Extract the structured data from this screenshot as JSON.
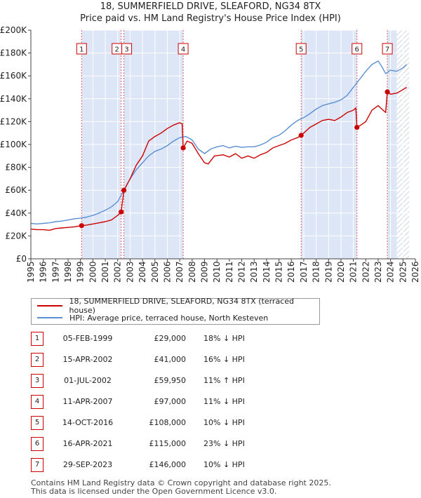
{
  "title_line1": "18, SUMMERFIELD DRIVE, SLEAFORD, NG34 8TX",
  "title_line2": "Price paid vs. HM Land Registry's House Price Index (HPI)",
  "legend": {
    "property": "18, SUMMERFIELD DRIVE, SLEAFORD, NG34 8TX (terraced house)",
    "hpi": "HPI: Average price, terraced house, North Kesteven"
  },
  "colors": {
    "property": "#cc0000",
    "hpi": "#5b8fd4",
    "shade": "#dde6f6",
    "marker": "#cc0000"
  },
  "transactions": [
    {
      "num": "1",
      "date": "05-FEB-1999",
      "price": "£29,000",
      "hpi": "18% ↓ HPI"
    },
    {
      "num": "2",
      "date": "15-APR-2002",
      "price": "£41,000",
      "hpi": "16% ↓ HPI"
    },
    {
      "num": "3",
      "date": "01-JUL-2002",
      "price": "£59,950",
      "hpi": "11% ↑ HPI"
    },
    {
      "num": "4",
      "date": "11-APR-2007",
      "price": "£97,000",
      "hpi": "11% ↓ HPI"
    },
    {
      "num": "5",
      "date": "14-OCT-2016",
      "price": "£108,000",
      "hpi": "10% ↓ HPI"
    },
    {
      "num": "6",
      "date": "16-APR-2021",
      "price": "£115,000",
      "hpi": "23% ↓ HPI"
    },
    {
      "num": "7",
      "date": "29-SEP-2023",
      "price": "£146,000",
      "hpi": "10% ↓ HPI"
    }
  ],
  "footer_line1": "Contains HM Land Registry data © Crown copyright and database right 2025.",
  "footer_line2": "This data is licensed under the Open Government Licence v3.0.",
  "chart_data": {
    "type": "line",
    "title": "18, SUMMERFIELD DRIVE, SLEAFORD, NG34 8TX — Price paid vs. HM Land Registry's House Price Index (HPI)",
    "xlabel": "",
    "ylabel": "",
    "xlim": [
      1995,
      2026
    ],
    "ylim": [
      0,
      200000
    ],
    "x_ticks": [
      1995,
      1996,
      1997,
      1998,
      1999,
      2000,
      2001,
      2002,
      2003,
      2004,
      2005,
      2006,
      2007,
      2008,
      2009,
      2010,
      2011,
      2012,
      2013,
      2014,
      2015,
      2016,
      2017,
      2018,
      2019,
      2020,
      2021,
      2022,
      2023,
      2024,
      2025,
      2026
    ],
    "y_ticks": [
      0,
      20000,
      40000,
      60000,
      80000,
      100000,
      120000,
      140000,
      160000,
      180000,
      200000
    ],
    "y_tick_labels": [
      "£0",
      "£20K",
      "£40K",
      "£60K",
      "£80K",
      "£100K",
      "£120K",
      "£140K",
      "£160K",
      "£180K",
      "£200K"
    ],
    "shaded_ranges": [
      [
        1999.1,
        2002.25
      ],
      [
        2002.5,
        2007.28
      ],
      [
        2016.79,
        2021.29
      ],
      [
        2023.75,
        2024.5
      ]
    ],
    "hatched_range": [
      2024.5,
      2025.5
    ],
    "series": [
      {
        "name": "18, SUMMERFIELD DRIVE, SLEAFORD, NG34 8TX (terraced house)",
        "x": [
          1995,
          1995.5,
          1996,
          1996.5,
          1997,
          1997.5,
          1998,
          1998.5,
          1999.09,
          1999.5,
          2000,
          2000.5,
          2001,
          2001.5,
          2002,
          2002.28,
          2002.5,
          2003,
          2003.5,
          2004,
          2004.5,
          2005,
          2005.5,
          2006,
          2006.5,
          2007,
          2007.2,
          2007.28,
          2007.6,
          2008,
          2008.5,
          2009,
          2009.3,
          2009.8,
          2010.5,
          2011,
          2011.5,
          2012,
          2012.5,
          2013,
          2013.5,
          2014,
          2014.5,
          2015,
          2015.5,
          2016,
          2016.5,
          2016.79,
          2017,
          2017.5,
          2018,
          2018.5,
          2019,
          2019.5,
          2020,
          2020.5,
          2021,
          2021.2,
          2021.29,
          2021.6,
          2022,
          2022.5,
          2023,
          2023.4,
          2023.6,
          2023.74,
          2024,
          2024.5,
          2025,
          2025.3
        ],
        "y": [
          26000,
          25500,
          25500,
          25000,
          26500,
          27000,
          27500,
          28000,
          29000,
          29500,
          30500,
          31500,
          32500,
          34000,
          38000,
          41000,
          59950,
          70000,
          82000,
          90000,
          103000,
          107000,
          110000,
          114000,
          117000,
          119000,
          118000,
          97000,
          103000,
          101000,
          92000,
          84000,
          83000,
          90000,
          91000,
          89000,
          92000,
          88000,
          90000,
          88000,
          91000,
          93000,
          97000,
          99000,
          101000,
          104000,
          106000,
          108000,
          110000,
          115000,
          118000,
          121000,
          122000,
          121000,
          124000,
          128000,
          130000,
          132000,
          115000,
          117000,
          120000,
          130000,
          134000,
          130000,
          128000,
          146000,
          144000,
          145000,
          148000,
          150000
        ]
      },
      {
        "name": "HPI: Average price, terraced house, North Kesteven",
        "x": [
          1995,
          1995.5,
          1996,
          1996.5,
          1997,
          1997.5,
          1998,
          1998.5,
          1999,
          1999.5,
          2000,
          2000.5,
          2001,
          2001.5,
          2002,
          2002.5,
          2003,
          2003.5,
          2004,
          2004.5,
          2005,
          2005.5,
          2006,
          2006.5,
          2007,
          2007.5,
          2008,
          2008.5,
          2009,
          2009.5,
          2010,
          2010.5,
          2011,
          2011.5,
          2012,
          2012.5,
          2013,
          2013.5,
          2014,
          2014.5,
          2015,
          2015.5,
          2016,
          2016.5,
          2017,
          2017.5,
          2018,
          2018.5,
          2019,
          2019.5,
          2020,
          2020.5,
          2021,
          2021.5,
          2022,
          2022.5,
          2023,
          2023.3,
          2023.6,
          2024,
          2024.5,
          2025,
          2025.3
        ],
        "y": [
          31000,
          30500,
          31000,
          31500,
          32500,
          33000,
          34000,
          35000,
          35500,
          36500,
          38000,
          40000,
          42500,
          45500,
          50000,
          60000,
          70000,
          78000,
          84000,
          90000,
          94000,
          96000,
          99000,
          103000,
          106000,
          107000,
          104000,
          96000,
          92000,
          96000,
          98000,
          99000,
          97000,
          98500,
          97500,
          98000,
          98000,
          99500,
          102000,
          106000,
          108000,
          112000,
          117000,
          121000,
          123500,
          127000,
          131000,
          134000,
          135500,
          137000,
          139000,
          143000,
          150000,
          157000,
          164000,
          170000,
          173000,
          168000,
          162000,
          165000,
          164000,
          167000,
          170000
        ]
      }
    ],
    "markers": [
      {
        "label": "1",
        "x": 1999.09,
        "y": 29000
      },
      {
        "label": "2",
        "x": 2002.28,
        "y": 41000
      },
      {
        "label": "3",
        "x": 2002.5,
        "y": 59950
      },
      {
        "label": "4",
        "x": 2007.28,
        "y": 97000
      },
      {
        "label": "5",
        "x": 2016.79,
        "y": 108000
      },
      {
        "label": "6",
        "x": 2021.29,
        "y": 115000
      },
      {
        "label": "7",
        "x": 2023.74,
        "y": 146000
      }
    ]
  }
}
